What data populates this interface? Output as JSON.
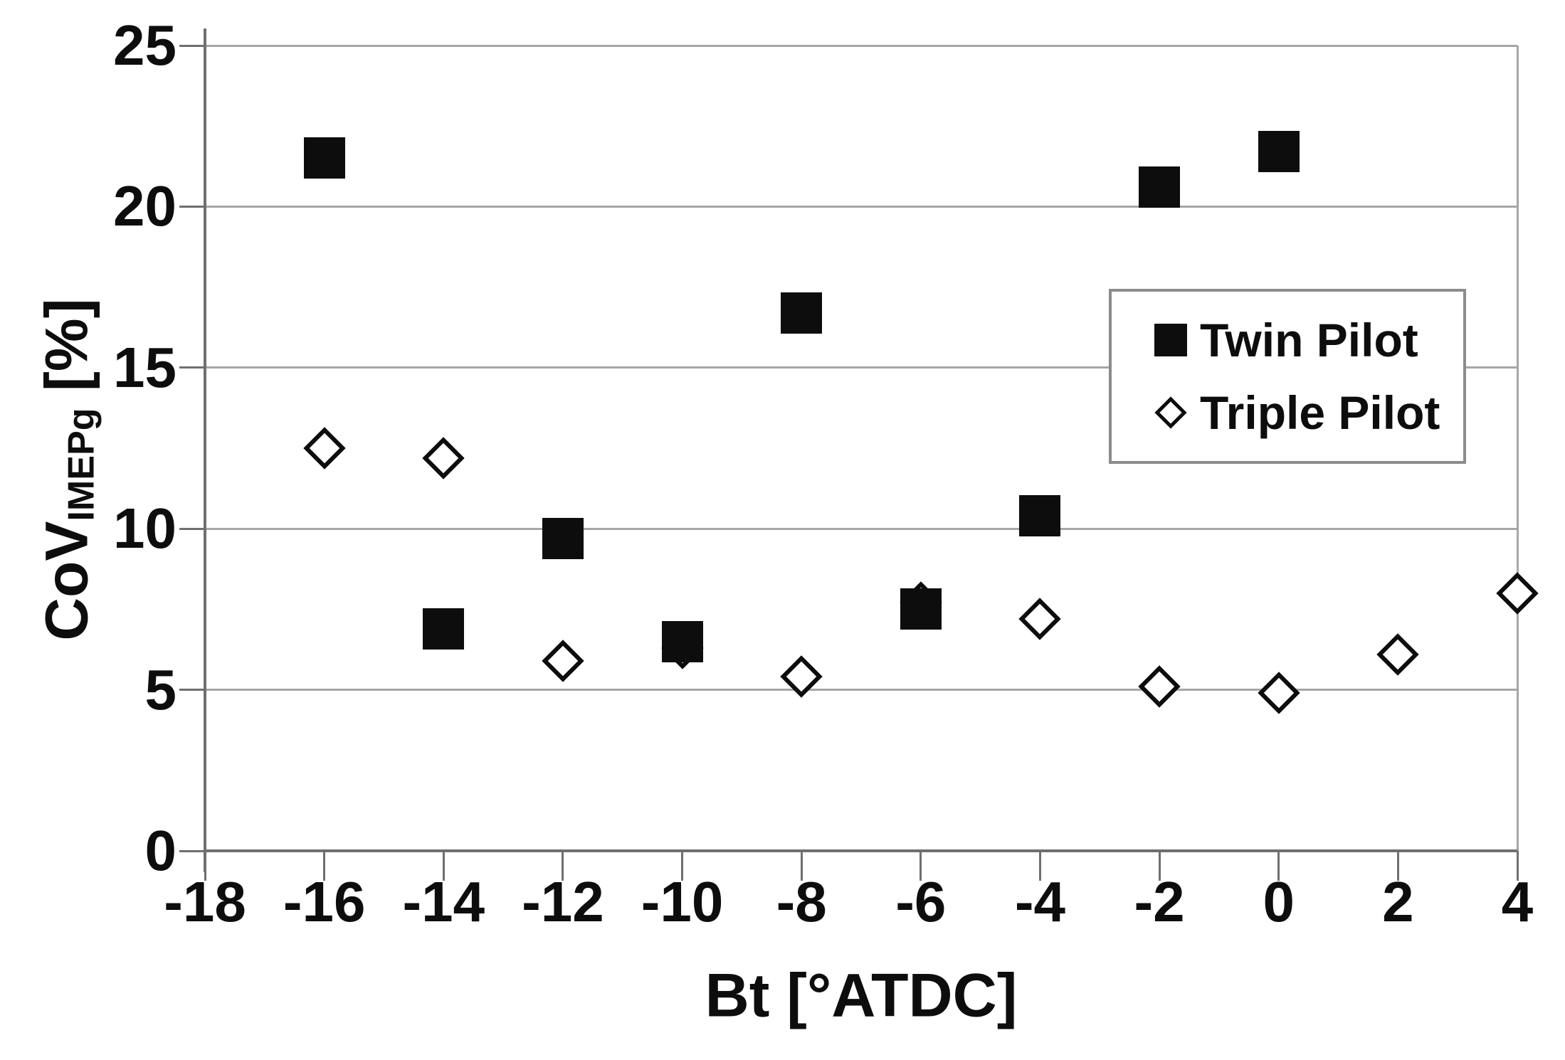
{
  "figure": {
    "background": "#ffffff",
    "text_color": "#0d0d0d",
    "gridline_color": "#a6a6a6",
    "axis_color": "#6f6f6f",
    "legend_border_color": "#8c8c8c"
  },
  "chart_data": {
    "type": "scatter",
    "title": "",
    "xlabel": "Bt [°ATDC]",
    "ylabel": "CoV_IMEPg [%]",
    "ylabel_parts": {
      "main": "CoV",
      "sub": "IMEPg",
      "unit": " [%]"
    },
    "xlim": [
      -18,
      4
    ],
    "ylim": [
      0,
      25
    ],
    "x_ticks": [
      -18,
      -16,
      -14,
      -12,
      -10,
      -8,
      -6,
      -4,
      -2,
      0,
      2,
      4
    ],
    "y_ticks": [
      0,
      5,
      10,
      15,
      20,
      25
    ],
    "grid": "horizontal",
    "legend_position": "top-right",
    "series": [
      {
        "name": "Twin Pilot",
        "marker": "filled-square",
        "color": "#0d0d0d",
        "points": [
          [
            -16,
            21.5
          ],
          [
            -14,
            6.9
          ],
          [
            -12,
            9.7
          ],
          [
            -10,
            6.5
          ],
          [
            -8,
            16.7
          ],
          [
            -6,
            7.5
          ],
          [
            -4,
            10.4
          ],
          [
            -2,
            20.6
          ],
          [
            0,
            21.7
          ]
        ]
      },
      {
        "name": "Triple Pilot",
        "marker": "open-diamond",
        "color": "#0d0d0d",
        "points": [
          [
            -16,
            12.5
          ],
          [
            -14,
            12.2
          ],
          [
            -12,
            5.9
          ],
          [
            -10,
            6.3
          ],
          [
            -8,
            5.4
          ],
          [
            -6,
            7.7
          ],
          [
            -4,
            7.2
          ],
          [
            -2,
            5.1
          ],
          [
            0,
            4.9
          ],
          [
            2,
            6.1
          ],
          [
            4,
            8.0
          ]
        ]
      }
    ]
  }
}
